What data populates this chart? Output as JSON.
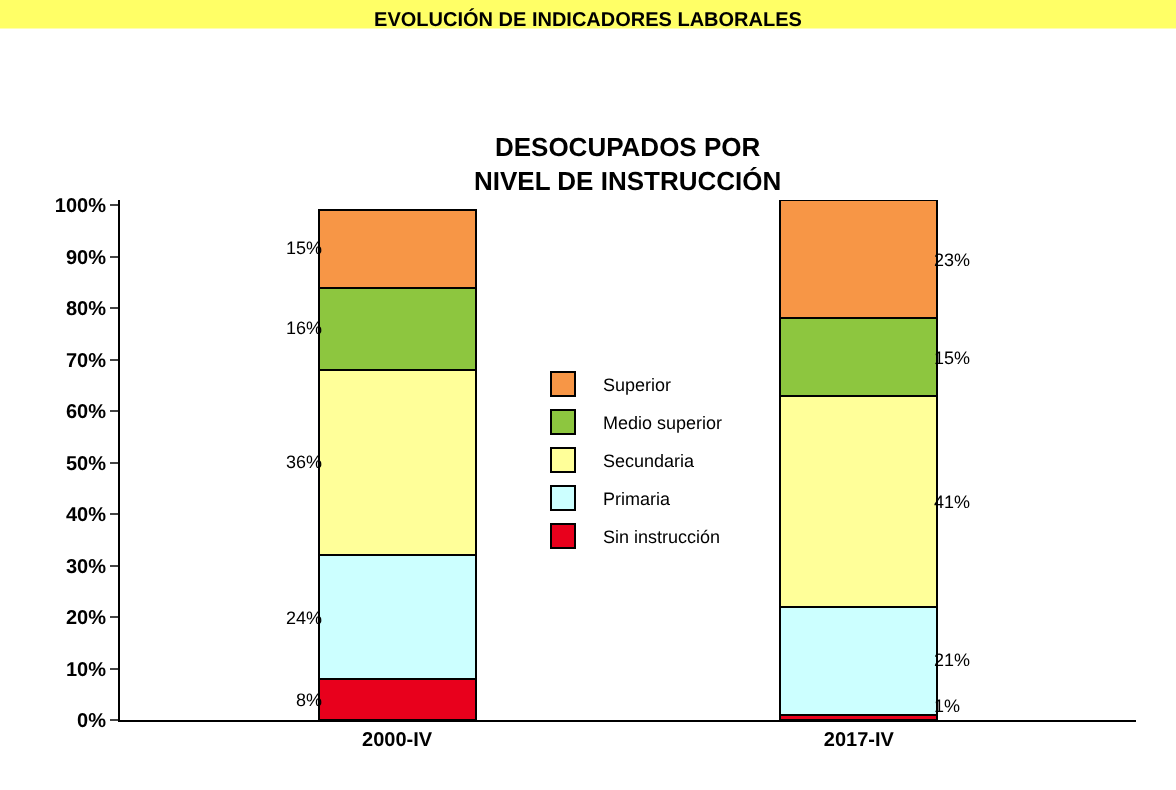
{
  "chart_data": {
    "type": "bar",
    "title": "EVOLUCIÓN DE INDICADORES LABORALES",
    "subtitle": "DESOCUPADOS POR\nNIVEL DE INSTRUCCIÓN",
    "categories": [
      "2000-IV",
      "2017-IV"
    ],
    "series": [
      {
        "name": "Sin instrucción",
        "color": "#e8001c",
        "values": [
          8,
          1
        ],
        "value_labels": [
          "8%",
          "1%"
        ]
      },
      {
        "name": "Primaria",
        "color": "#ccffff",
        "values": [
          24,
          21
        ],
        "value_labels": [
          "24%",
          "21%"
        ]
      },
      {
        "name": "Secundaria",
        "color": "#ffff99",
        "values": [
          36,
          41
        ],
        "value_labels": [
          "36%",
          "41%"
        ]
      },
      {
        "name": "Medio superior",
        "color": "#8dc63f",
        "values": [
          16,
          15
        ],
        "value_labels": [
          "16%",
          "15%"
        ]
      },
      {
        "name": "Superior",
        "color": "#f79646",
        "values": [
          15,
          23
        ],
        "value_labels": [
          "15%",
          "23%"
        ]
      }
    ],
    "stacked": true,
    "ylim": [
      0,
      101
    ],
    "yticks": [
      {
        "value": 0,
        "label": "0%"
      },
      {
        "value": 10,
        "label": "10%"
      },
      {
        "value": 20,
        "label": "20%"
      },
      {
        "value": 30,
        "label": "30%"
      },
      {
        "value": 40,
        "label": "40%"
      },
      {
        "value": 50,
        "label": "50%"
      },
      {
        "value": 60,
        "label": "60%"
      },
      {
        "value": 70,
        "label": "70%"
      },
      {
        "value": 80,
        "label": "80%"
      },
      {
        "value": 90,
        "label": "90%"
      },
      {
        "value": 100,
        "label": "100%"
      }
    ],
    "legend": "center"
  }
}
